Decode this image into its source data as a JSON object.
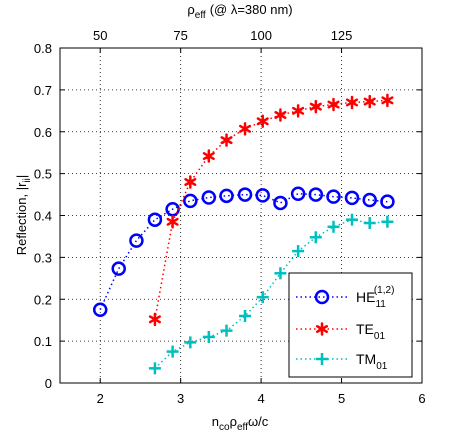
{
  "chart_data": {
    "type": "scatter",
    "xlabel": {
      "n": "n",
      "co": "co",
      "rho": "ρ",
      "eff": "eff",
      "rest": "ω/c"
    },
    "ylabel": {
      "main": "Reflection, |r",
      "sub": "ii",
      "end": "|"
    },
    "top_label": {
      "rho": "ρ",
      "eff": "eff",
      "rest": "(@ λ=380 nm)"
    },
    "xlim": [
      1.5,
      6
    ],
    "ylim": [
      0,
      0.8
    ],
    "x_ticks": [
      "2",
      "3",
      "4",
      "5",
      "6"
    ],
    "y_ticks": [
      "0",
      "0.1",
      "0.2",
      "0.3",
      "0.4",
      "0.5",
      "0.6",
      "0.7",
      "0.8"
    ],
    "top_ticks": [
      {
        "label": "50",
        "x": 2.0
      },
      {
        "label": "75",
        "x": 3.0
      },
      {
        "label": "100",
        "x": 4.0
      },
      {
        "label": "125",
        "x": 5.0
      }
    ],
    "grid": true,
    "legend_position": "bottom-right",
    "series": [
      {
        "name": {
          "main": "HE",
          "sub": "11",
          "sup": "(1,2)"
        },
        "marker": "circle",
        "color": "#0000ff",
        "x": [
          2.0,
          2.23,
          2.45,
          2.68,
          2.9,
          3.12,
          3.35,
          3.57,
          3.8,
          4.02,
          4.24,
          4.46,
          4.68,
          4.9,
          5.13,
          5.35,
          5.57
        ],
        "y": [
          0.175,
          0.273,
          0.34,
          0.39,
          0.415,
          0.435,
          0.443,
          0.447,
          0.45,
          0.448,
          0.43,
          0.452,
          0.45,
          0.445,
          0.442,
          0.437,
          0.433
        ]
      },
      {
        "name": {
          "main": "TE",
          "sub": "01"
        },
        "marker": "asterisk",
        "color": "#ff0000",
        "x": [
          2.68,
          2.9,
          3.12,
          3.35,
          3.57,
          3.8,
          4.02,
          4.24,
          4.46,
          4.68,
          4.9,
          5.13,
          5.35,
          5.57
        ],
        "y": [
          0.152,
          0.385,
          0.48,
          0.542,
          0.58,
          0.607,
          0.625,
          0.64,
          0.65,
          0.66,
          0.665,
          0.67,
          0.672,
          0.675
        ]
      },
      {
        "name": {
          "main": "TM",
          "sub": "01"
        },
        "marker": "plus",
        "color": "#00bfbf",
        "x": [
          2.68,
          2.9,
          3.12,
          3.35,
          3.57,
          3.8,
          4.02,
          4.24,
          4.46,
          4.68,
          4.9,
          5.13,
          5.35,
          5.57
        ],
        "y": [
          0.035,
          0.075,
          0.097,
          0.11,
          0.125,
          0.16,
          0.205,
          0.262,
          0.315,
          0.348,
          0.373,
          0.39,
          0.382,
          0.385
        ]
      }
    ]
  }
}
